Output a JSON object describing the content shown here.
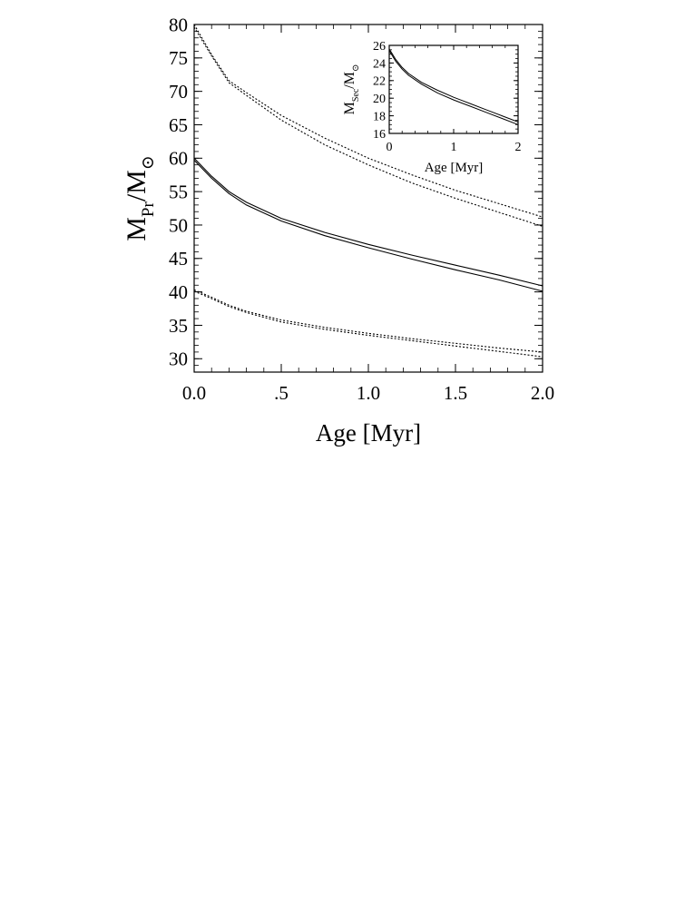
{
  "chart_data": [
    {
      "type": "line",
      "title": "",
      "xlabel": "Age [Myr]",
      "ylabel": {
        "main": "M",
        "sub": "Pr",
        "unit": "/M",
        "unit_sub": "⊙"
      },
      "xlim": [
        0,
        2
      ],
      "ylim": [
        28,
        80
      ],
      "xticks": [
        {
          "value": 0,
          "label": "0.0"
        },
        {
          "value": 0.5,
          "label": ".5"
        },
        {
          "value": 1,
          "label": "1.0"
        },
        {
          "value": 1.5,
          "label": "1.5"
        },
        {
          "value": 2,
          "label": "2.0"
        }
      ],
      "yticks": [
        30,
        35,
        40,
        45,
        50,
        55,
        60,
        65,
        70,
        75,
        80
      ],
      "grid": false,
      "series": [
        {
          "style": "dotted",
          "x": [
            0,
            0.1,
            0.2,
            0.3,
            0.5,
            0.75,
            1.0,
            1.25,
            1.5,
            1.75,
            2.0
          ],
          "y": [
            80,
            75.5,
            71.6,
            69.8,
            66.4,
            63.0,
            60.0,
            57.5,
            55.2,
            53.2,
            51.2
          ]
        },
        {
          "style": "dotted",
          "x": [
            0,
            0.1,
            0.2,
            0.3,
            0.5,
            0.75,
            1.0,
            1.25,
            1.5,
            1.75,
            2.0
          ],
          "y": [
            79.6,
            75.3,
            71.3,
            69.4,
            65.7,
            62.0,
            59.0,
            56.3,
            54.0,
            51.9,
            49.8
          ]
        },
        {
          "style": "solid",
          "x": [
            0,
            0.1,
            0.2,
            0.3,
            0.5,
            0.75,
            1.0,
            1.25,
            1.5,
            1.75,
            2.0
          ],
          "y": [
            60,
            57.3,
            55.0,
            53.4,
            51.0,
            48.9,
            47.1,
            45.5,
            44.0,
            42.5,
            40.9
          ]
        },
        {
          "style": "solid",
          "x": [
            0,
            0.1,
            0.2,
            0.3,
            0.5,
            0.75,
            1.0,
            1.25,
            1.5,
            1.75,
            2.0
          ],
          "y": [
            59.7,
            57.0,
            54.7,
            53.0,
            50.6,
            48.4,
            46.6,
            44.9,
            43.3,
            41.8,
            40.1
          ]
        },
        {
          "style": "dotted",
          "x": [
            0,
            0.1,
            0.2,
            0.3,
            0.5,
            0.75,
            1.0,
            1.25,
            1.5,
            1.75,
            2.0
          ],
          "y": [
            40.3,
            39.2,
            38.0,
            37.1,
            35.8,
            34.7,
            33.8,
            33.0,
            32.3,
            31.6,
            31.0
          ]
        },
        {
          "style": "dotted",
          "x": [
            0,
            0.1,
            0.2,
            0.3,
            0.5,
            0.75,
            1.0,
            1.25,
            1.5,
            1.75,
            2.0
          ],
          "y": [
            40.1,
            39.0,
            37.8,
            36.9,
            35.5,
            34.4,
            33.5,
            32.7,
            31.9,
            31.1,
            30.3
          ]
        }
      ]
    },
    {
      "type": "line",
      "title": "",
      "xlabel": "Age [Myr]",
      "ylabel": {
        "main": "M",
        "sub": "Sec",
        "unit": "/M",
        "unit_sub": "⊙"
      },
      "xlim": [
        0,
        2
      ],
      "ylim": [
        16,
        26
      ],
      "xticks": [
        {
          "value": 0,
          "label": "0"
        },
        {
          "value": 1,
          "label": "1"
        },
        {
          "value": 2,
          "label": "2"
        }
      ],
      "yticks": [
        16,
        18,
        20,
        22,
        24,
        26
      ],
      "grid": false,
      "series": [
        {
          "style": "solid",
          "x": [
            0,
            0.1,
            0.2,
            0.3,
            0.5,
            0.75,
            1.0,
            1.25,
            1.5,
            1.75,
            2.0
          ],
          "y": [
            25.6,
            24.4,
            23.5,
            22.8,
            21.8,
            20.9,
            20.1,
            19.4,
            18.7,
            18.0,
            17.3
          ]
        },
        {
          "style": "solid",
          "x": [
            0,
            0.1,
            0.2,
            0.3,
            0.5,
            0.75,
            1.0,
            1.25,
            1.5,
            1.75,
            2.0
          ],
          "y": [
            25.4,
            24.2,
            23.3,
            22.6,
            21.6,
            20.6,
            19.8,
            19.1,
            18.4,
            17.7,
            17.0
          ]
        }
      ]
    }
  ]
}
